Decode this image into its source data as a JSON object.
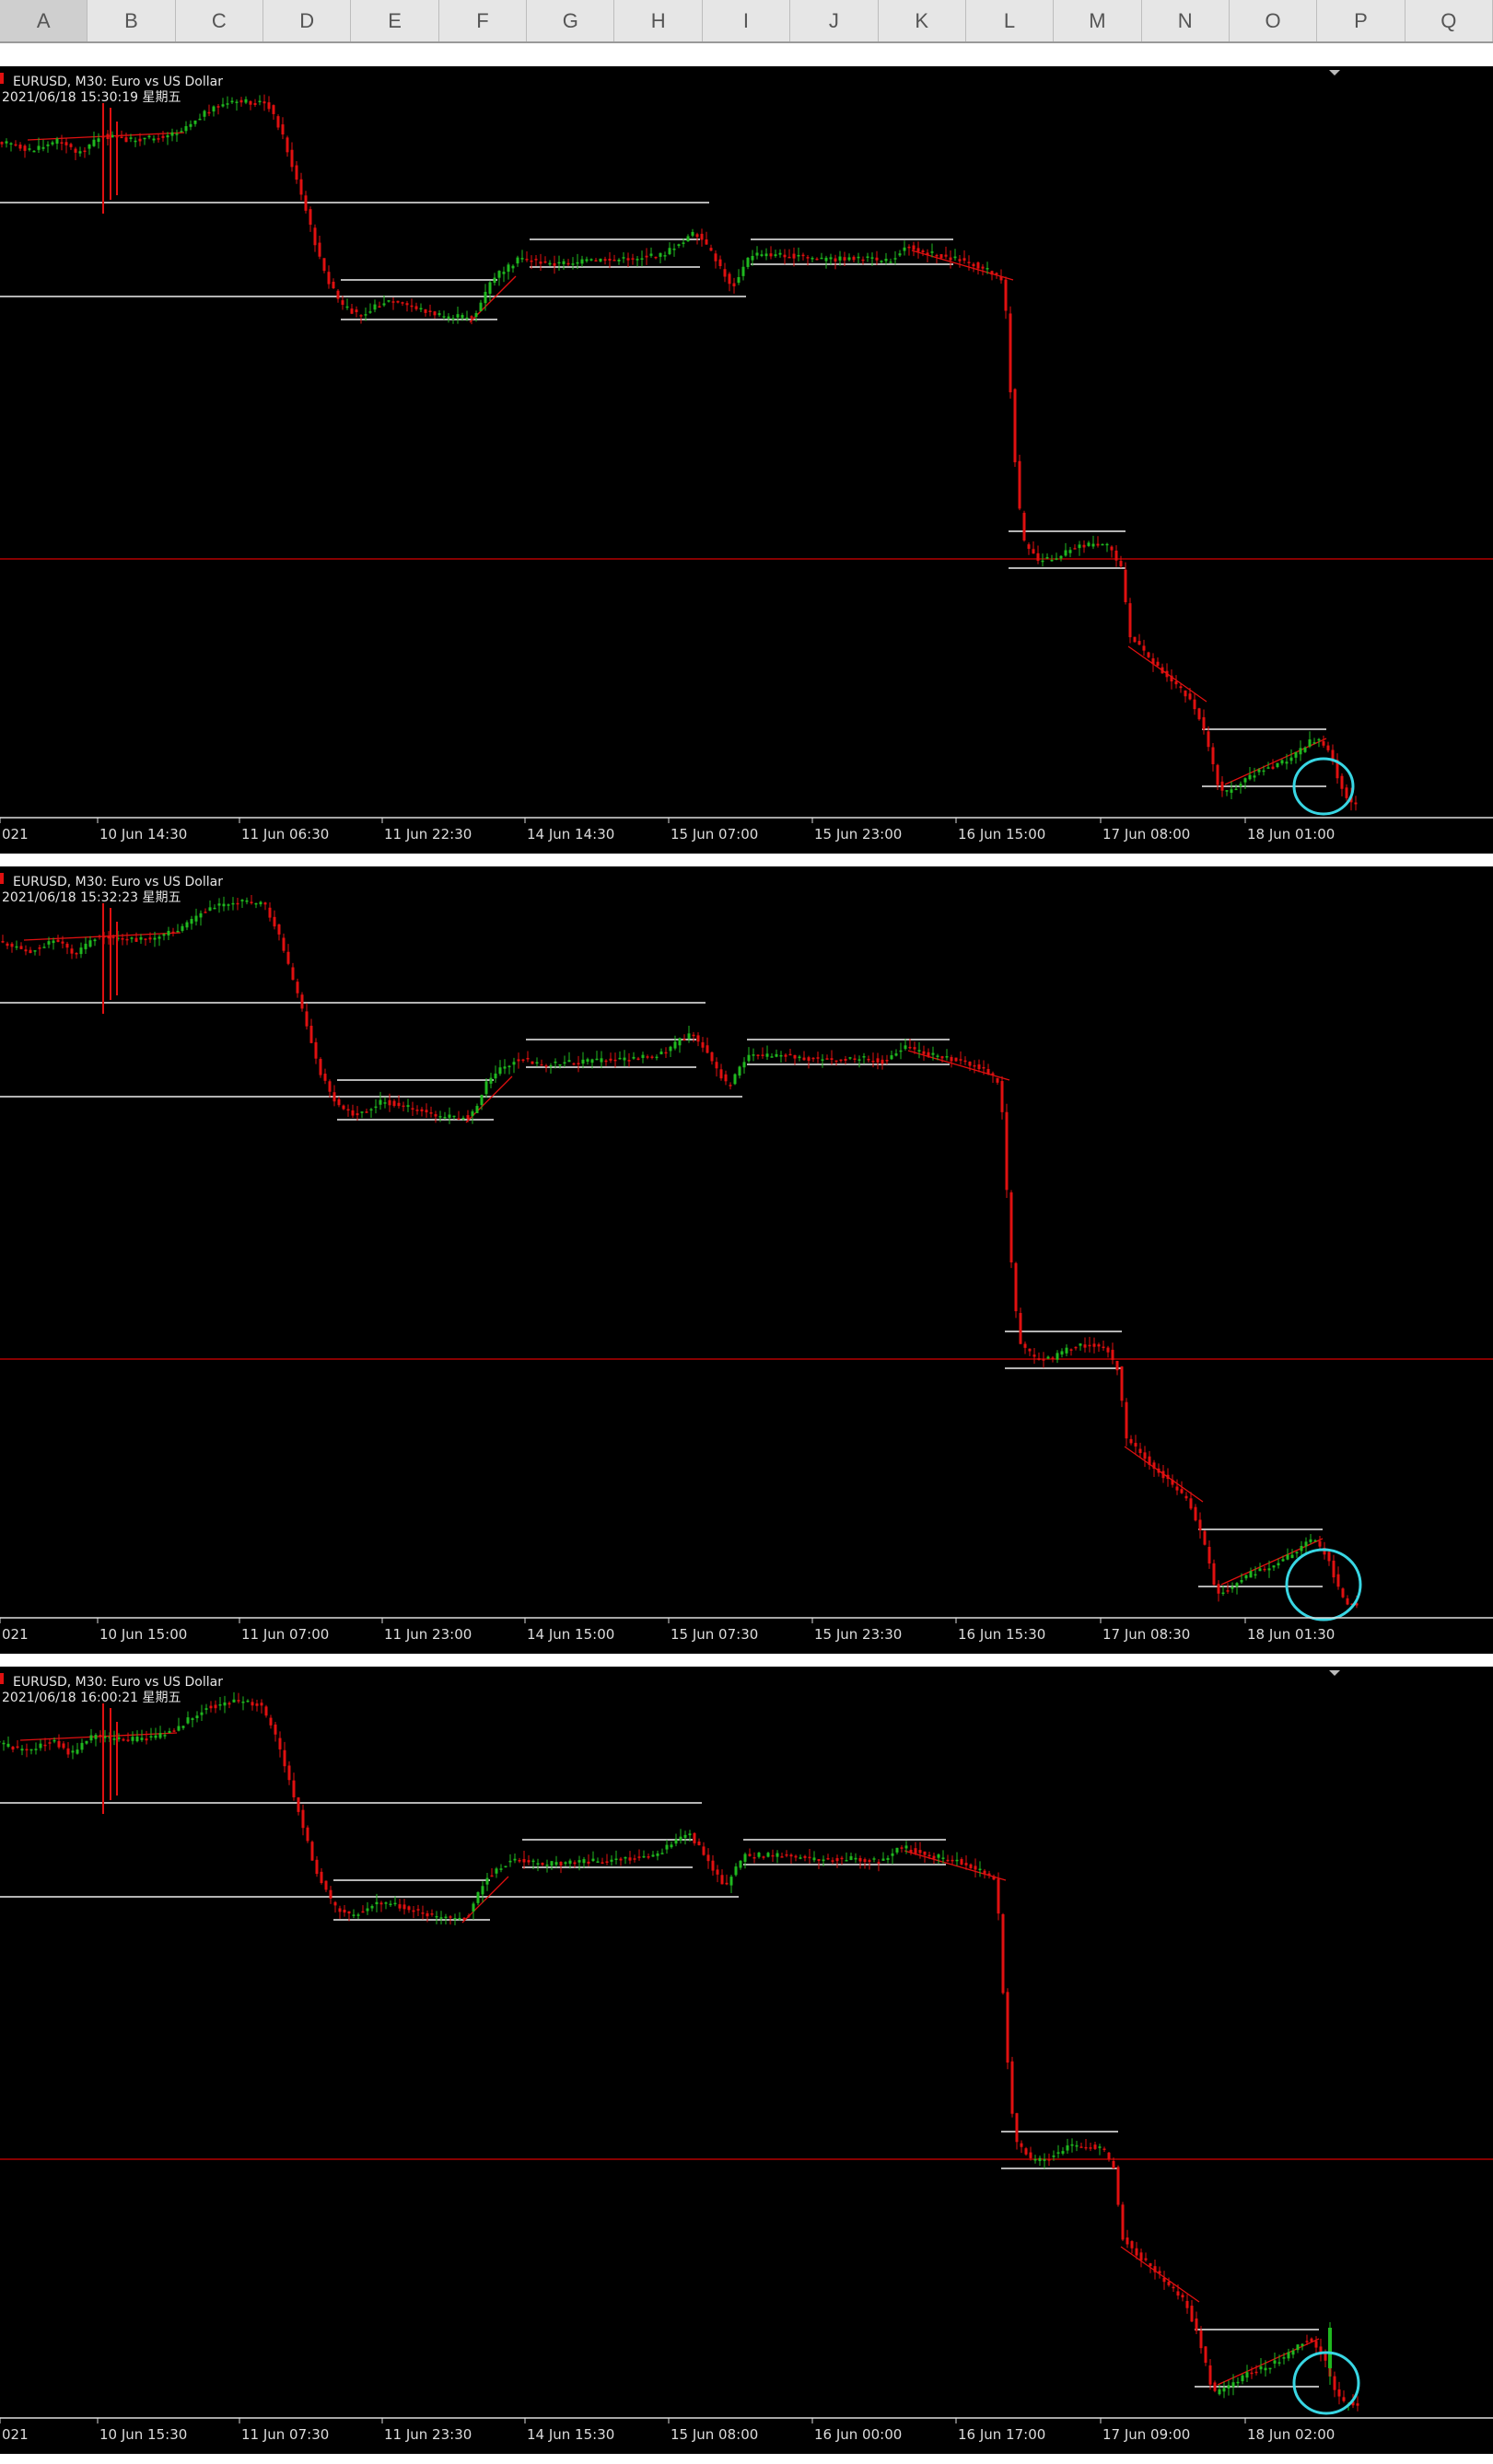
{
  "columns": [
    "A",
    "B",
    "C",
    "D",
    "E",
    "F",
    "G",
    "H",
    "I",
    "J",
    "K",
    "L",
    "M",
    "N",
    "O",
    "P",
    "Q"
  ],
  "active_column": "A",
  "colors": {
    "background": "#000000",
    "bull": "#1fb81f",
    "bear": "#e01010",
    "level_line": "#b4b4b4",
    "horizontal_red": "#b30000",
    "highlight_circle": "#38d6e3"
  },
  "charts": [
    {
      "symbol_line": "EURUSD, M30:  Euro vs US Dollar",
      "timestamp_line": "2021/06/18 15:30:19  星期五",
      "x_ticks": [
        "021",
        "10 Jun 14:30",
        "11 Jun 06:30",
        "11 Jun 22:30",
        "14 Jun 14:30",
        "15 Jun 07:00",
        "15 Jun 23:00",
        "16 Jun 15:00",
        "17 Jun 08:00",
        "18 Jun 01:00"
      ]
    },
    {
      "symbol_line": "EURUSD, M30:  Euro vs US Dollar",
      "timestamp_line": "2021/06/18 15:32:23  星期五",
      "x_ticks": [
        "021",
        "10 Jun 15:00",
        "11 Jun 07:00",
        "11 Jun 23:00",
        "14 Jun 15:00",
        "15 Jun 07:30",
        "15 Jun 23:30",
        "16 Jun 15:30",
        "17 Jun 08:30",
        "18 Jun 01:30"
      ]
    },
    {
      "symbol_line": "EURUSD, M30:  Euro vs US Dollar",
      "timestamp_line": "2021/06/18 16:00:21  星期五",
      "x_ticks": [
        "021",
        "10 Jun 15:30",
        "11 Jun 07:30",
        "11 Jun 23:30",
        "14 Jun 15:30",
        "15 Jun 08:00",
        "16 Jun 00:00",
        "16 Jun 17:00",
        "17 Jun 09:00",
        "18 Jun 02:00"
      ]
    }
  ]
}
